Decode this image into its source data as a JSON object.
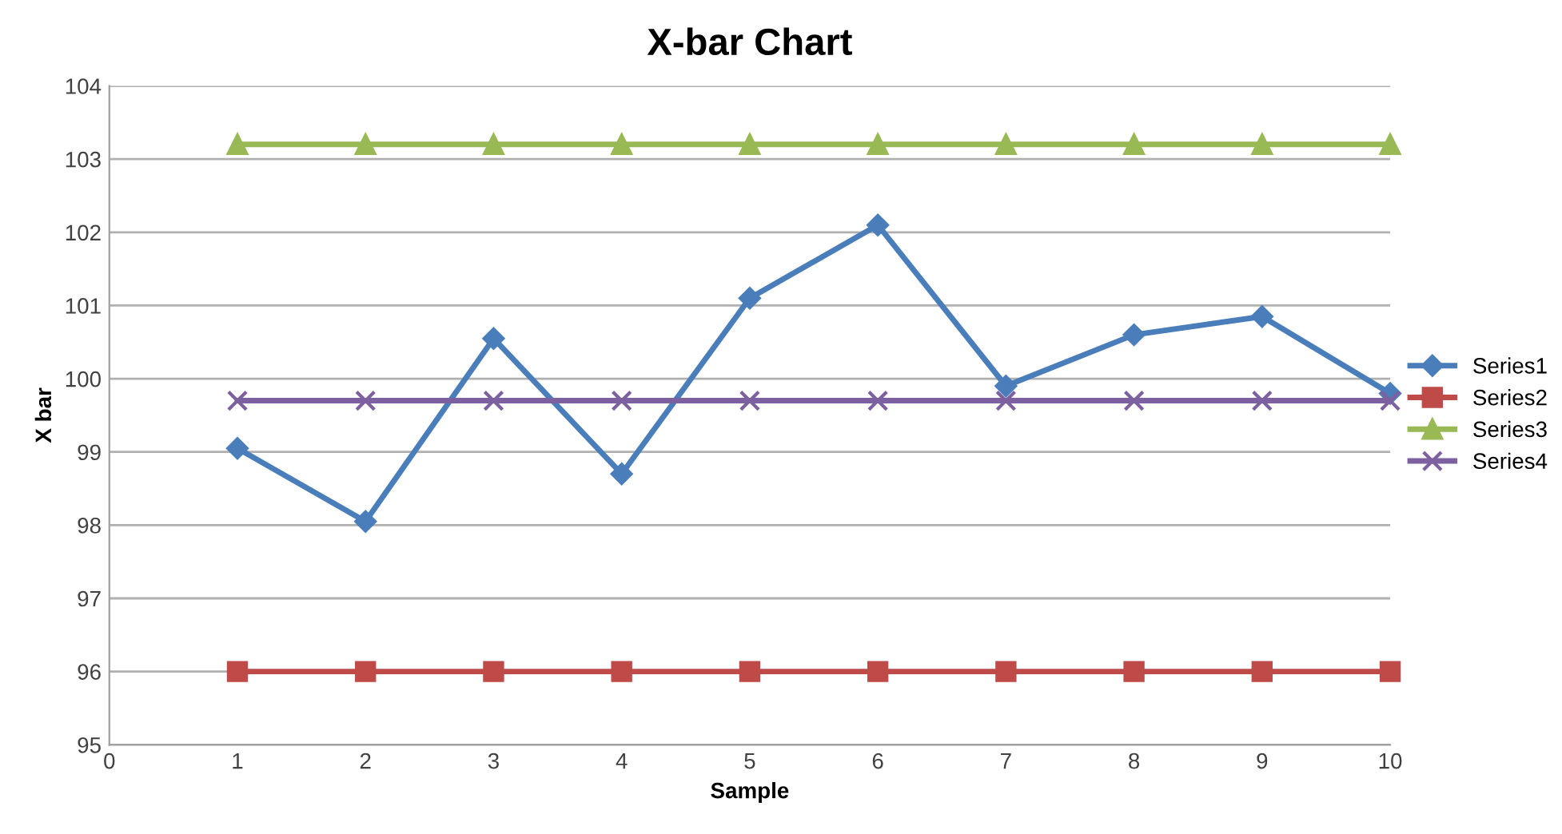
{
  "chart_data": {
    "type": "line",
    "title": "X-bar Chart",
    "xlabel": "Sample",
    "ylabel": "X bar",
    "x": [
      1,
      2,
      3,
      4,
      5,
      6,
      7,
      8,
      9,
      10
    ],
    "series": [
      {
        "name": "Series1",
        "color": "#4a7ebb",
        "marker": "diamond",
        "values": [
          99.05,
          98.05,
          100.55,
          98.7,
          101.1,
          102.1,
          99.9,
          100.6,
          100.85,
          99.8
        ]
      },
      {
        "name": "Series2",
        "color": "#be4b48",
        "marker": "square",
        "values": [
          96,
          96,
          96,
          96,
          96,
          96,
          96,
          96,
          96,
          96
        ]
      },
      {
        "name": "Series3",
        "color": "#98b954",
        "marker": "triangle",
        "values": [
          103.2,
          103.2,
          103.2,
          103.2,
          103.2,
          103.2,
          103.2,
          103.2,
          103.2,
          103.2
        ]
      },
      {
        "name": "Series4",
        "color": "#7d60a0",
        "marker": "cross",
        "values": [
          99.7,
          99.7,
          99.7,
          99.7,
          99.7,
          99.7,
          99.7,
          99.7,
          99.7,
          99.7
        ]
      }
    ],
    "xlim": [
      0,
      10
    ],
    "xticks": [
      0,
      1,
      2,
      3,
      4,
      5,
      6,
      7,
      8,
      9,
      10
    ],
    "ylim": [
      95,
      104
    ],
    "yticks": [
      95,
      96,
      97,
      98,
      99,
      100,
      101,
      102,
      103,
      104
    ],
    "grid": "y",
    "legend": "right",
    "line_style": "solid"
  }
}
